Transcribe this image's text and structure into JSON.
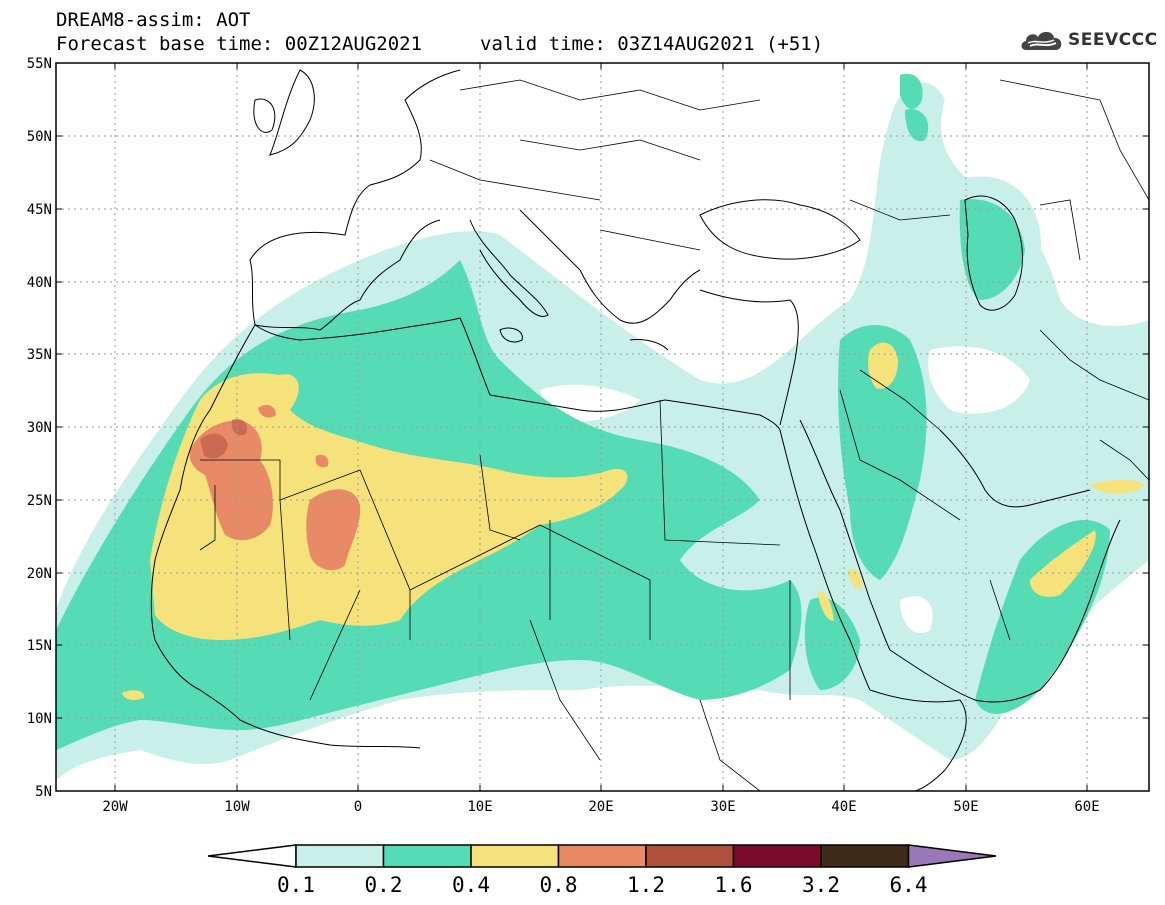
{
  "header": {
    "title": "DREAM8-assim: AOT",
    "base_time": "Forecast base time: 00Z12AUG2021",
    "valid_time": "valid time: 03Z14AUG2021 (+51)"
  },
  "logo": {
    "text": "SEEVCCC",
    "icon": "cloud-icon"
  },
  "map": {
    "lat_labels": [
      "55N",
      "50N",
      "45N",
      "40N",
      "35N",
      "30N",
      "25N",
      "20N",
      "15N",
      "10N",
      "5N"
    ],
    "lon_labels": [
      "20W",
      "10W",
      "0",
      "10E",
      "20E",
      "30E",
      "40E",
      "50E",
      "60E"
    ],
    "colors": {
      "land_outline": "#000000",
      "grid": "#9a9a9a"
    }
  },
  "colorbar": {
    "labels": [
      "0.1",
      "0.2",
      "0.4",
      "0.8",
      "1.2",
      "1.6",
      "3.2",
      "6.4"
    ],
    "colors": [
      "#ffffff",
      "#c8f0e8",
      "#56dcb4",
      "#f6e27a",
      "#e98a67",
      "#b0513e",
      "#7a0b2c",
      "#3f2a18",
      "#9a78b8"
    ]
  }
}
